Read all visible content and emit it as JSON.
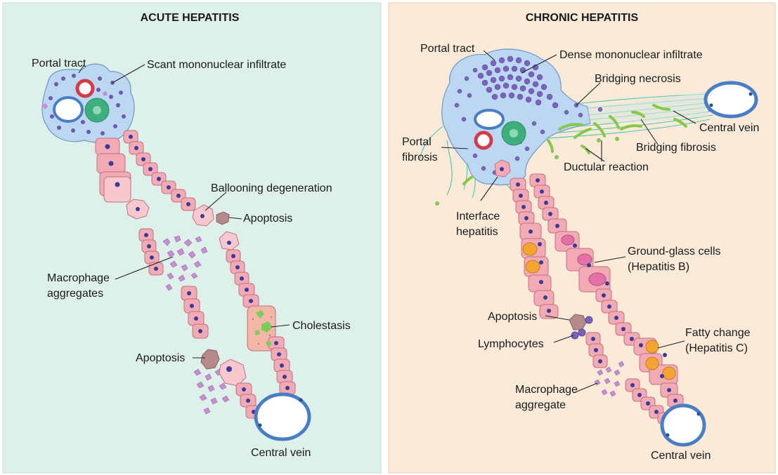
{
  "acute": {
    "title": "ACUTE HEPATITIS",
    "labels": {
      "portal_tract": "Portal tract",
      "scant_infiltrate": "Scant mononuclear infiltrate",
      "ballooning": "Ballooning degeneration",
      "apoptosis_top": "Apoptosis",
      "macrophage_1": "Macrophage",
      "macrophage_2": "aggregates",
      "cholestasis": "Cholestasis",
      "apoptosis_bottom": "Apoptosis",
      "central_vein": "Central vein"
    }
  },
  "chronic": {
    "title": "CHRONIC HEPATITIS",
    "labels": {
      "portal_tract": "Portal tract",
      "dense_infiltrate": "Dense mononuclear infiltrate",
      "bridging_necrosis": "Bridging necrosis",
      "central_vein_right": "Central vein",
      "portal_fibrosis_1": "Portal",
      "portal_fibrosis_2": "fibrosis",
      "bridging_fibrosis": "Bridging fibrosis",
      "ductular_reaction": "Ductular reaction",
      "interface_1": "Interface",
      "interface_2": "hepatitis",
      "ground_glass_1": "Ground-glass cells",
      "ground_glass_2": "(Hepatitis B)",
      "apoptosis": "Apoptosis",
      "lymphocytes": "Lymphocytes",
      "fatty_1": "Fatty change",
      "fatty_2": "(Hepatitis C)",
      "macrophage_1": "Macrophage",
      "macrophage_2": "aggregate",
      "central_vein_bottom": "Central vein"
    }
  },
  "colors": {
    "acute_bg": "#ddf0ea",
    "chronic_bg": "#faead7",
    "hepatocyte": "#f2aab5",
    "hepatocyte_stroke": "#c2707e",
    "nucleus": "#3b3a9a",
    "portal": "#bcd7f2",
    "vein_wall": "#4a7ec4",
    "artery": "#d43a4a",
    "bile_duct": "#3fae7e",
    "fibrosis": "#4cc4ad",
    "macrophage": "#c58fd0",
    "apoptotic": "#b58a8a",
    "fat": "#f3a431",
    "ground_glass": "#e371a6",
    "cholestasis": "#7ccc5a",
    "ductule": "#86c84a"
  }
}
